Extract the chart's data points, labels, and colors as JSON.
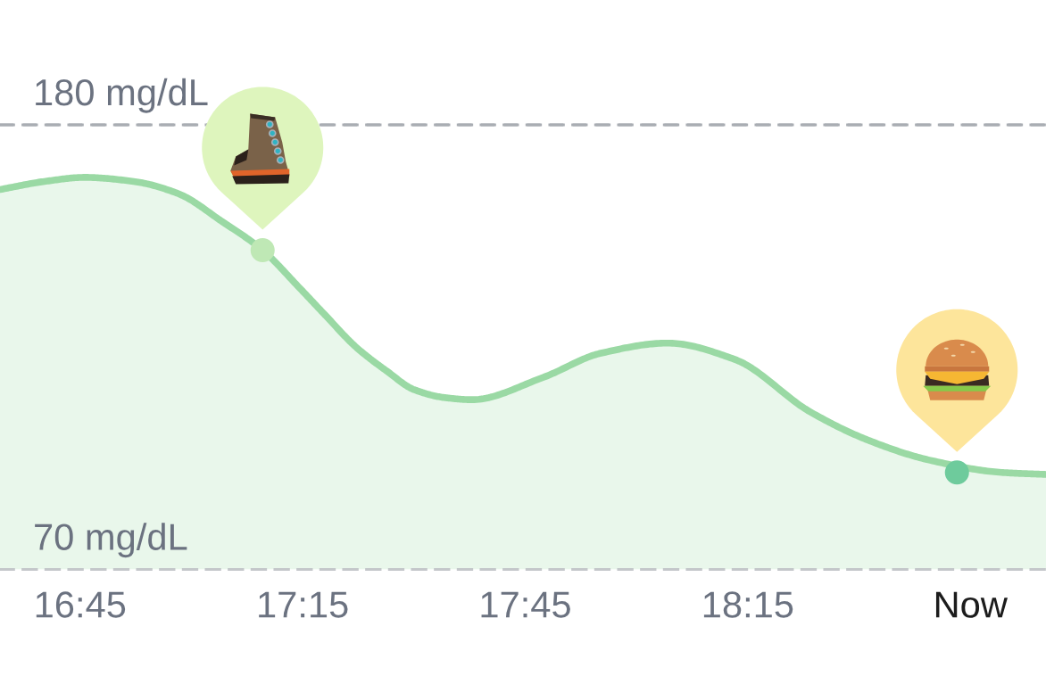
{
  "chart_data": {
    "type": "area",
    "series": [
      {
        "color": "#9ad9a4",
        "x": [
          16.57,
          16.67,
          16.76,
          16.87,
          16.97,
          17.07,
          17.16,
          17.24,
          17.3,
          17.37,
          17.44,
          17.5,
          17.57,
          17.63,
          17.79,
          17.92,
          18.07,
          18.22,
          18.39,
          18.52,
          18.66,
          18.82,
          18.92
        ],
        "values": [
          164,
          166,
          167,
          166,
          163,
          156,
          149,
          140,
          133,
          125,
          119,
          114.5,
          112.5,
          112,
          117.5,
          123.5,
          126,
          122,
          109,
          102,
          97,
          94,
          93.5
        ]
      },
      {
        "type": "scatter",
        "marker": "circle",
        "colors": [
          "#bfe8b5",
          "#6ecb9c"
        ],
        "x": [
          17.16,
          18.72
        ],
        "values": [
          149,
          94
        ]
      }
    ],
    "xlim": [
      16.57,
      18.92
    ],
    "xticks": [
      {
        "value": 16.75,
        "label": "16:45"
      },
      {
        "value": 17.25,
        "label": "17:15"
      },
      {
        "value": 17.75,
        "label": "17:45"
      },
      {
        "value": 18.25,
        "label": "18:15"
      },
      {
        "value": 18.75,
        "label": "Now"
      }
    ],
    "ylim": [
      70,
      180
    ],
    "yticks": [
      {
        "value": 70,
        "label": "70 mg/dL"
      },
      {
        "value": 180,
        "label": "180 mg/dL"
      }
    ],
    "grid": "y"
  }
}
